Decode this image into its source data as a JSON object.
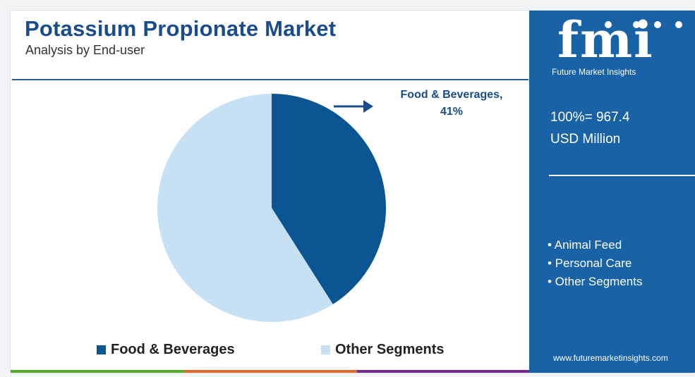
{
  "header": {
    "title": "Potassium Propionate Market",
    "subtitle": "Analysis by End-user"
  },
  "chart_data": {
    "type": "pie",
    "title": "Potassium Propionate Market",
    "subtitle": "Analysis by End-user",
    "slices": [
      {
        "label": "Food & Beverages",
        "value": 41,
        "color": "#0b5592"
      },
      {
        "label": "Other Segments",
        "value": 59,
        "color": "#c6e1f3"
      }
    ],
    "callout": {
      "label": "Food & Beverages,",
      "value_text": "41%"
    },
    "legend_placement": "bottom"
  },
  "legend": {
    "items": [
      {
        "label": "Food & Beverages",
        "color": "#0b5592"
      },
      {
        "label": "Other Segments",
        "color": "#c6e1f3"
      }
    ]
  },
  "sidebar": {
    "brand": "fmi",
    "brand_tagline": "Future Market Insights",
    "total_line1": "100%= 967.4",
    "total_line2": "USD Million",
    "segments": [
      "• Animal Feed",
      "• Personal Care",
      "• Other Segments"
    ],
    "website": "www.futuremarketinsights.com"
  },
  "colors": {
    "accent_dark": "#1a4c8c",
    "panel": "#1a62a6",
    "bar_green": "#5aaa2a",
    "bar_orange": "#e06a2a",
    "bar_purple": "#7a2a8c"
  }
}
